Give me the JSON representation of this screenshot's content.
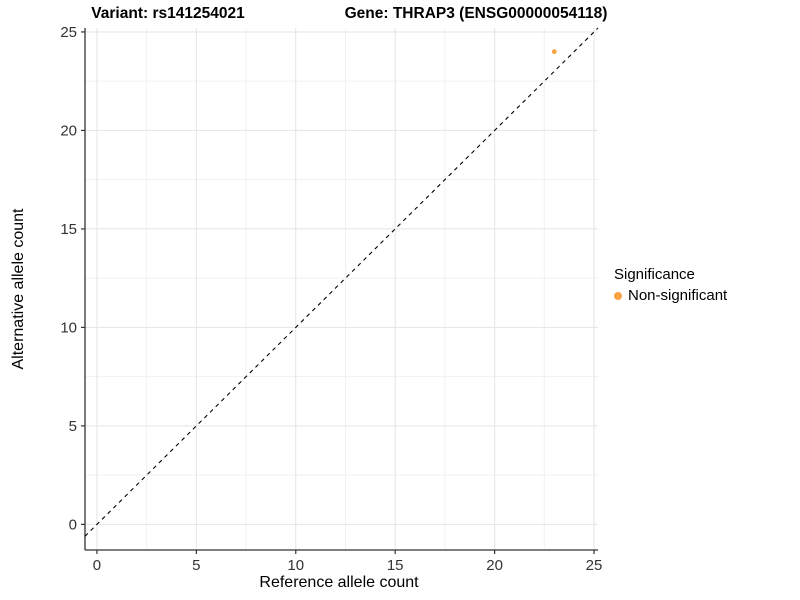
{
  "titles": {
    "variant": "Variant: rs141254021",
    "gene": "Gene: THRAP3 (ENSG00000054118)"
  },
  "chart_data": {
    "type": "scatter",
    "title": "Variant: rs141254021   Gene: THRAP3 (ENSG00000054118)",
    "xlabel": "Reference allele count",
    "ylabel": "Alternative allele count",
    "xlim": [
      -0.6,
      25.2
    ],
    "ylim": [
      -1.3,
      25.2
    ],
    "x_ticks": [
      0,
      5,
      10,
      15,
      20,
      25
    ],
    "y_ticks": [
      0,
      5,
      10,
      15,
      20,
      25
    ],
    "x_minor_ticks": [
      2.5,
      7.5,
      12.5,
      17.5,
      22.5
    ],
    "y_minor_ticks": [
      2.5,
      7.5,
      12.5,
      17.5,
      22.5
    ],
    "grid": true,
    "identity_line": {
      "equation": "y = x",
      "style": "dashed",
      "color": "#000000"
    },
    "series": [
      {
        "name": "Non-significant",
        "color": "#F9A242",
        "points": [
          {
            "x": 23,
            "y": 24
          }
        ]
      }
    ],
    "legend": {
      "title": "Significance",
      "position": "right",
      "items": [
        {
          "label": "Non-significant",
          "color": "#F9A242"
        }
      ]
    },
    "colors": {
      "axis_line": "#333333",
      "tick_label": "#333333",
      "grid_major": "#E4E4E4",
      "grid_minor": "#F1F1F1"
    }
  }
}
